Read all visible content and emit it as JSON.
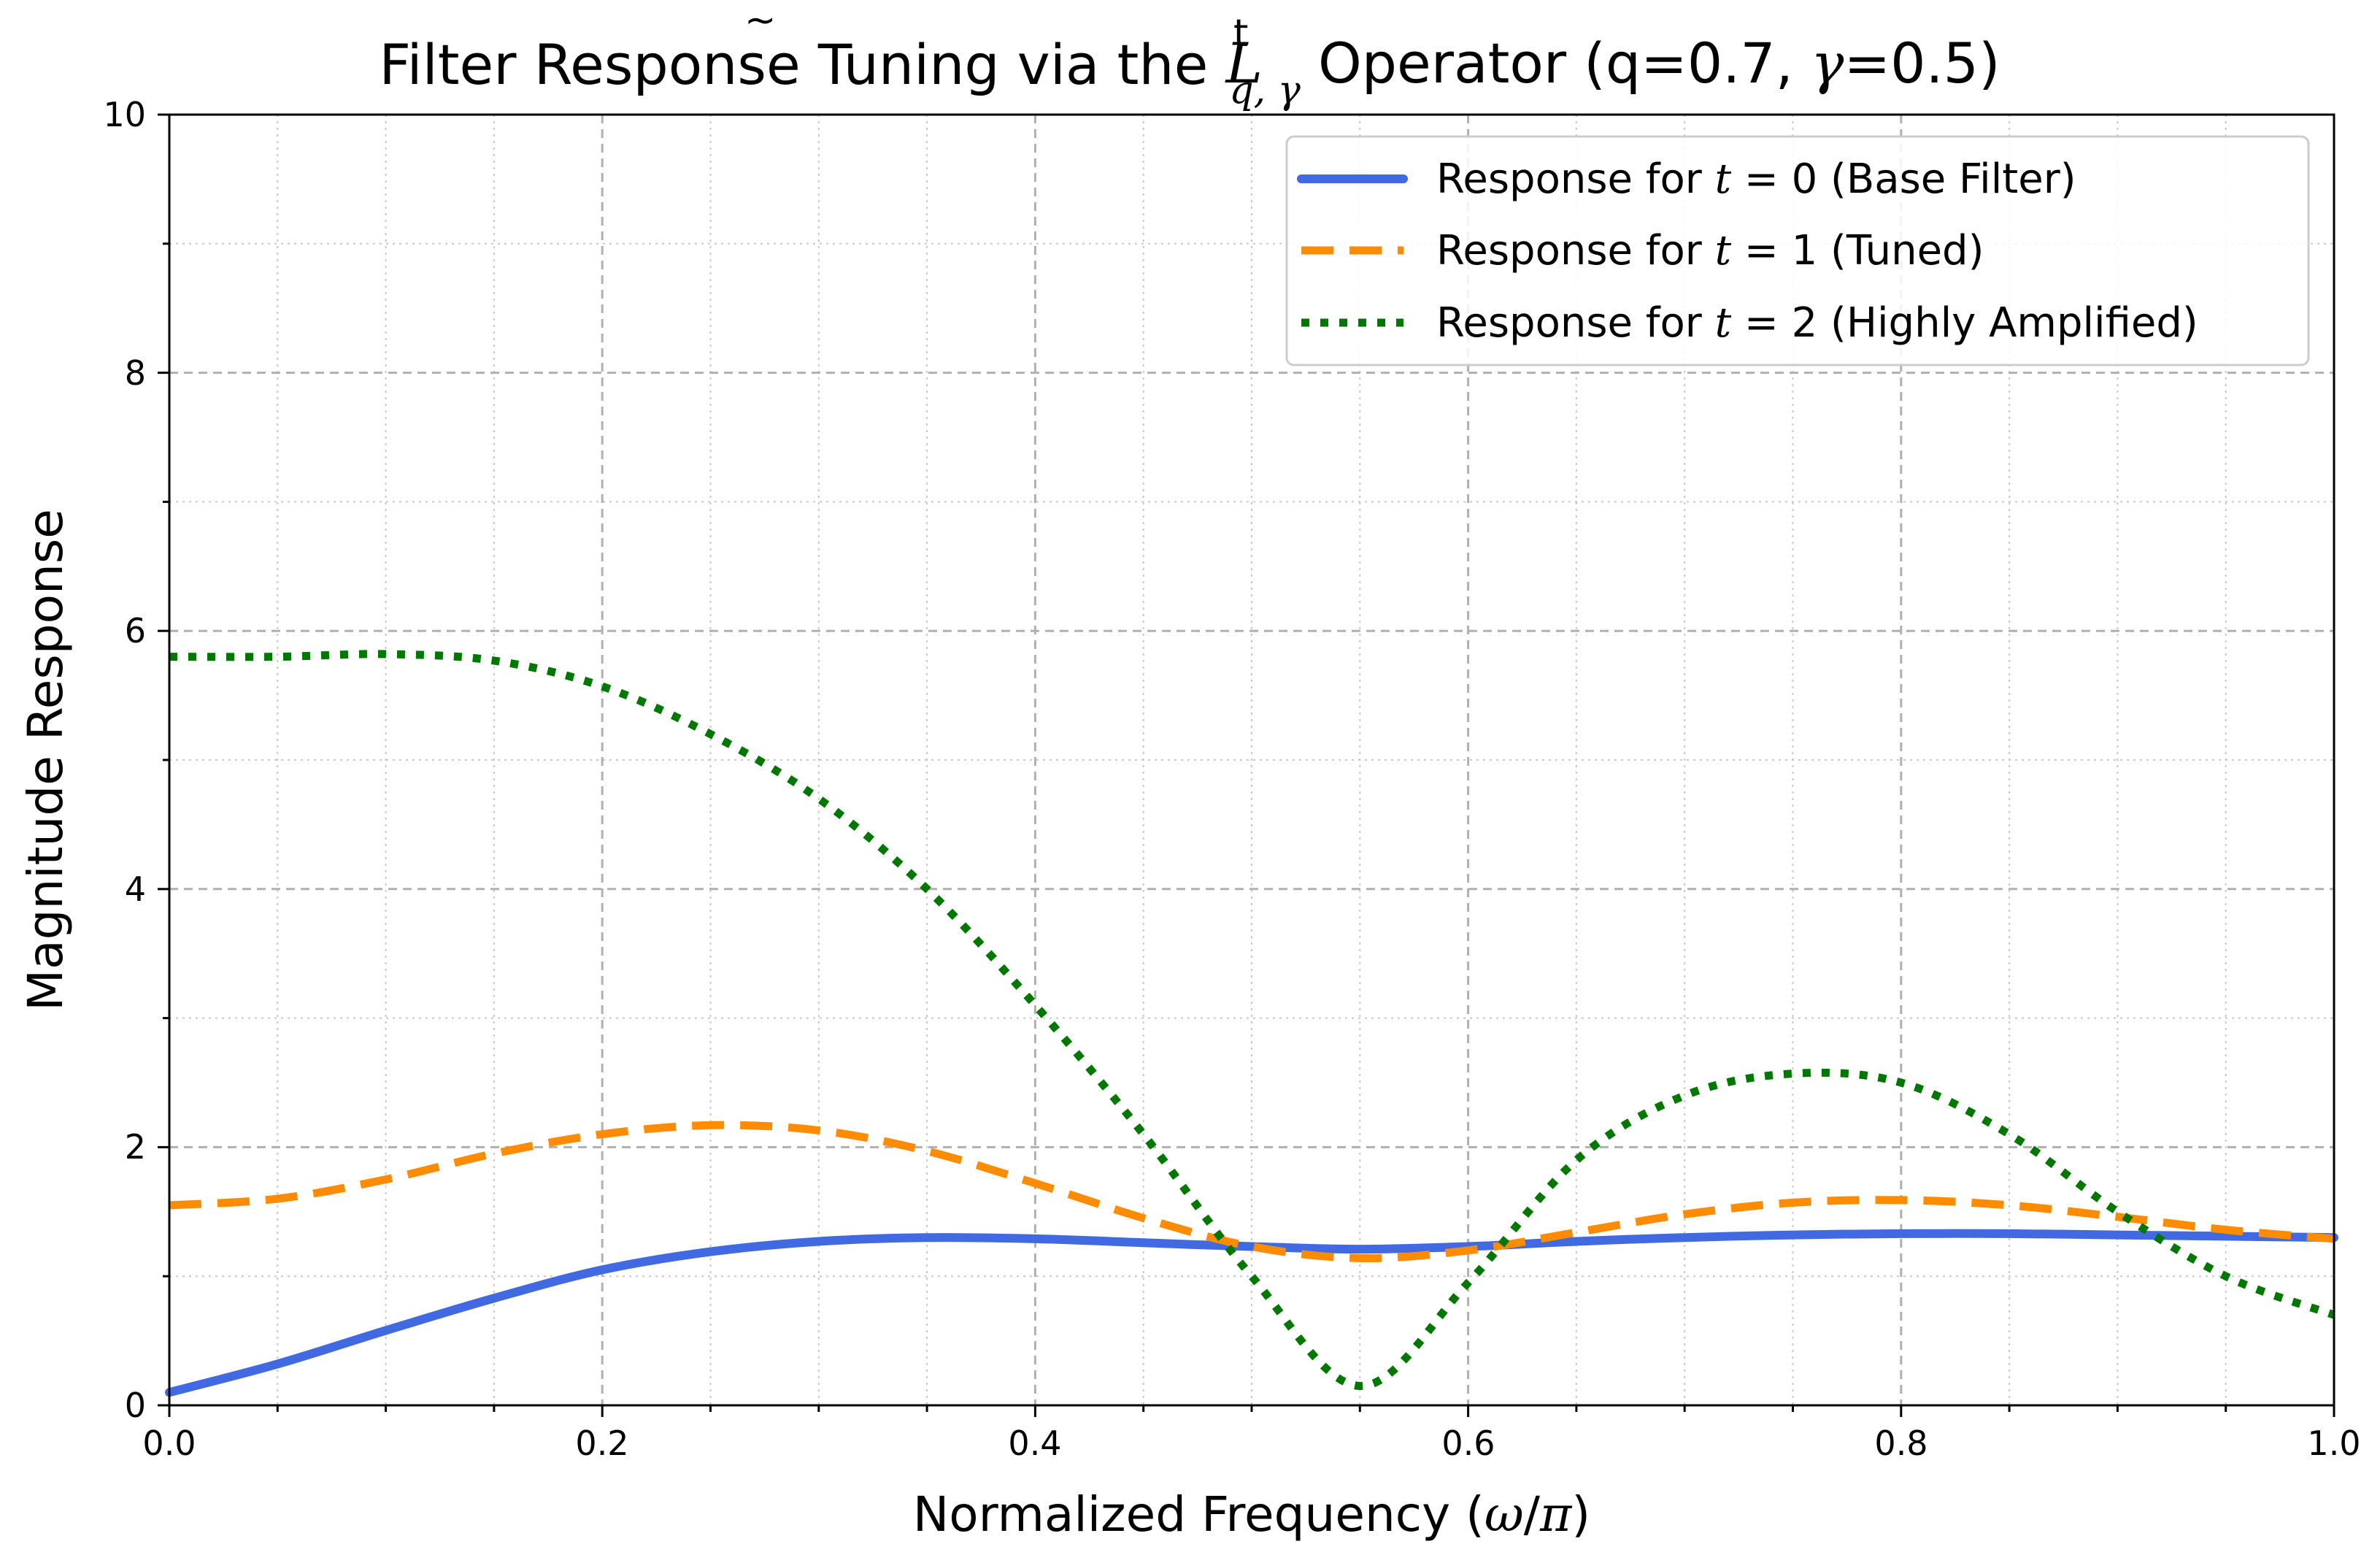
{
  "chart_data": {
    "type": "line",
    "title": {
      "prefix": "Filter Response Tuning via the ",
      "operator": "L",
      "operator_accent": "~",
      "operator_sup": "t",
      "operator_sub": "q, γ",
      "suffix_a": " Operator (q=0.7, ",
      "gamma": "γ",
      "suffix_b": "=0.5)"
    },
    "xlabel": {
      "prefix": "Normalized Frequency (",
      "omega": "ω",
      "slash": "/",
      "pi": "π",
      "suffix": ")"
    },
    "ylabel": "Magnitude Response",
    "xlim": [
      0.0,
      1.0
    ],
    "ylim": [
      0,
      10
    ],
    "xticks": [
      "0.0",
      "0.2",
      "0.4",
      "0.6",
      "0.8",
      "1.0"
    ],
    "yticks": [
      "0",
      "2",
      "4",
      "6",
      "8",
      "10"
    ],
    "grid": true,
    "legend_position": "top-right",
    "x": [
      0.0,
      0.05,
      0.1,
      0.15,
      0.2,
      0.25,
      0.3,
      0.35,
      0.4,
      0.45,
      0.5,
      0.55,
      0.6,
      0.65,
      0.7,
      0.75,
      0.8,
      0.85,
      0.9,
      0.95,
      1.0
    ],
    "series": [
      {
        "name": "Response for t = 0 (Base Filter)",
        "legend_prefix": "Response for ",
        "legend_var": "t",
        "legend_eq": " = 0",
        "legend_suffix": " (Base Filter)",
        "color": "#4169E1",
        "style": "solid",
        "values": [
          0.1,
          0.32,
          0.58,
          0.83,
          1.05,
          1.19,
          1.27,
          1.3,
          1.29,
          1.26,
          1.23,
          1.21,
          1.23,
          1.27,
          1.3,
          1.32,
          1.33,
          1.33,
          1.32,
          1.31,
          1.3
        ]
      },
      {
        "name": "Response for t = 1 (Tuned)",
        "legend_prefix": "Response for ",
        "legend_var": "t",
        "legend_eq": " = 1",
        "legend_suffix": " (Tuned)",
        "color": "#FF8C00",
        "style": "dashed",
        "values": [
          1.55,
          1.6,
          1.75,
          1.95,
          2.1,
          2.17,
          2.13,
          1.97,
          1.72,
          1.45,
          1.23,
          1.14,
          1.2,
          1.34,
          1.48,
          1.57,
          1.59,
          1.55,
          1.46,
          1.36,
          1.29
        ]
      },
      {
        "name": "Response for t = 2 (Highly Amplified)",
        "legend_prefix": "Response for ",
        "legend_var": "t",
        "legend_eq": " = 2",
        "legend_suffix": " (Highly Amplified)",
        "color": "#007800",
        "style": "dotted",
        "values": [
          5.8,
          5.8,
          5.82,
          5.77,
          5.57,
          5.2,
          4.7,
          4.0,
          3.1,
          2.1,
          1.0,
          0.15,
          0.95,
          1.9,
          2.4,
          2.57,
          2.5,
          2.1,
          1.5,
          1.0,
          0.7
        ]
      }
    ]
  }
}
